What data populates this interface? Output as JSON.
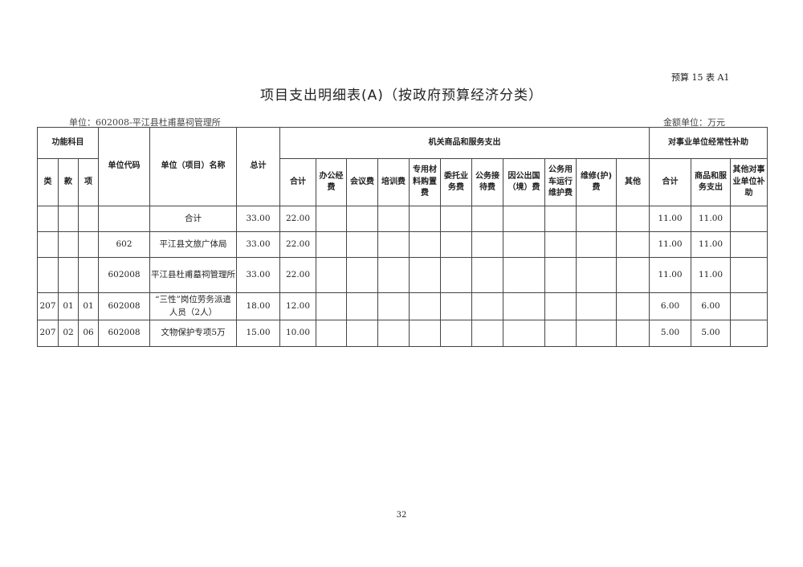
{
  "form_no": "预算 15 表 A1",
  "title": "项目支出明细表(A)（按政府预算经济分类）",
  "unit": "单位：602008-平江县杜甫墓祠管理所",
  "money_unit": "金额单位：万元",
  "headers": {
    "func_subject": "功能科目",
    "lei": "类",
    "kuan": "款",
    "xiang": "项",
    "unit_code": "单位代码",
    "unit_name": "单位（项目）名称",
    "total": "总计",
    "group1": "机关商品和服务支出",
    "g1_cols": [
      "合计",
      "办公经费",
      "会议费",
      "培训费",
      "专用材料购置费",
      "委托业务费",
      "公务接待费",
      "因公出国（境）费",
      "公务用车运行维护费",
      "维修(护)费",
      "其他"
    ],
    "group2": "对事业单位经常性补助",
    "g2_cols": [
      "合计",
      "商品和服务支出",
      "其他对事业单位补助"
    ]
  },
  "rows": [
    [
      "",
      "",
      "",
      "",
      "合计",
      "33.00",
      "22.00",
      "",
      "",
      "",
      "",
      "",
      "",
      "",
      "",
      "",
      "",
      "11.00",
      "11.00",
      ""
    ],
    [
      "",
      "",
      "",
      "602",
      "平江县文旅广体局",
      "33.00",
      "22.00",
      "",
      "",
      "",
      "",
      "",
      "",
      "",
      "",
      "",
      "",
      "11.00",
      "11.00",
      ""
    ],
    [
      "",
      "",
      "",
      "602008",
      "平江县杜甫墓祠管理所",
      "33.00",
      "22.00",
      "",
      "",
      "",
      "",
      "",
      "",
      "",
      "",
      "",
      "",
      "11.00",
      "11.00",
      ""
    ],
    [
      "207",
      "01",
      "01",
      "602008",
      "“三性”岗位劳务派遣人员（2人）",
      "18.00",
      "12.00",
      "",
      "",
      "",
      "",
      "",
      "",
      "",
      "",
      "",
      "",
      "6.00",
      "6.00",
      ""
    ],
    [
      "207",
      "02",
      "06",
      "602008",
      "文物保护专项5万",
      "15.00",
      "10.00",
      "",
      "",
      "",
      "",
      "",
      "",
      "",
      "",
      "",
      "",
      "5.00",
      "5.00",
      ""
    ]
  ],
  "page_number": "32"
}
